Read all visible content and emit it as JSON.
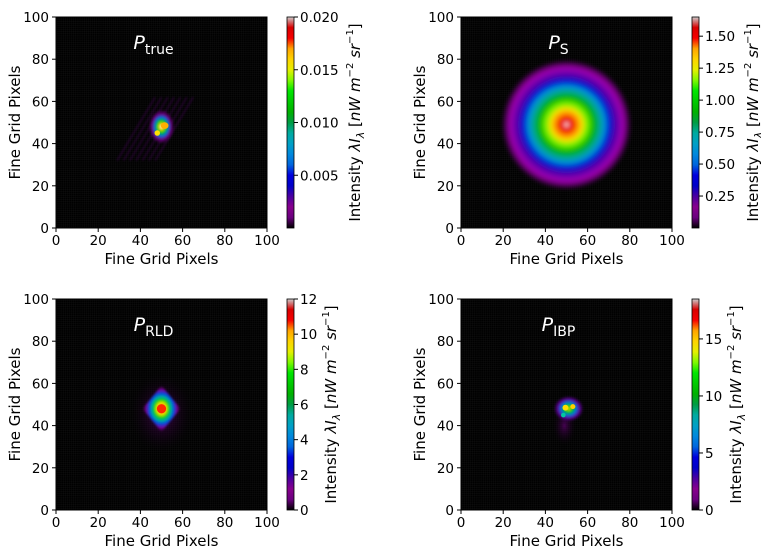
{
  "chart_data": [
    {
      "type": "heatmap",
      "title": "P_true",
      "title_main": "P",
      "title_sub": "true",
      "xlabel": "Fine Grid Pixels",
      "ylabel": "Fine Grid Pixels",
      "xlim": [
        0,
        100
      ],
      "ylim": [
        0,
        100
      ],
      "xticks": [
        "0",
        "20",
        "40",
        "60",
        "80",
        "100"
      ],
      "yticks": [
        "0",
        "20",
        "40",
        "60",
        "80",
        "100"
      ],
      "colorbar": {
        "label": "Intensity λI_λ [nW m^-2 sr^-1]",
        "range": [
          0,
          0.02
        ],
        "ticks": [
          "0.005",
          "0.010",
          "0.015",
          "0.020"
        ],
        "tick_values": [
          0.005,
          0.01,
          0.015,
          0.02
        ],
        "colormap": "nipy_spectral"
      },
      "source": {
        "center": [
          50,
          48
        ],
        "shape": "compact clumpy source with faint diagonal striations",
        "peak": 0.02
      }
    },
    {
      "type": "heatmap",
      "title": "P_S",
      "title_main": "P",
      "title_sub": "S",
      "xlabel": "Fine Grid Pixels",
      "ylabel": "Fine Grid Pixels",
      "xlim": [
        0,
        100
      ],
      "ylim": [
        0,
        100
      ],
      "xticks": [
        "0",
        "20",
        "40",
        "60",
        "80",
        "100"
      ],
      "yticks": [
        "0",
        "20",
        "40",
        "60",
        "80",
        "100"
      ],
      "colorbar": {
        "label": "Intensity λI_λ [nW m^-2 sr^-1]",
        "range": [
          0,
          1.65
        ],
        "ticks": [
          "0.25",
          "0.50",
          "0.75",
          "1.00",
          "1.25",
          "1.50"
        ],
        "tick_values": [
          0.25,
          0.5,
          0.75,
          1.0,
          1.25,
          1.5
        ],
        "colormap": "nipy_spectral"
      },
      "source": {
        "center": [
          50,
          49
        ],
        "shape": "broad smooth rounded-square blob",
        "peak": 1.65
      }
    },
    {
      "type": "heatmap",
      "title": "P_RLD",
      "title_main": "P",
      "title_sub": "RLD",
      "xlabel": "Fine Grid Pixels",
      "ylabel": "Fine Grid Pixels",
      "xlim": [
        0,
        100
      ],
      "ylim": [
        0,
        100
      ],
      "xticks": [
        "0",
        "20",
        "40",
        "60",
        "80",
        "100"
      ],
      "yticks": [
        "0",
        "20",
        "40",
        "60",
        "80",
        "100"
      ],
      "colorbar": {
        "label": "Intensity λI_λ [nW m^-2 sr^-1]",
        "range": [
          0,
          12
        ],
        "ticks": [
          "0",
          "2",
          "4",
          "6",
          "8",
          "10",
          "12"
        ],
        "tick_values": [
          0,
          2,
          4,
          6,
          8,
          10,
          12
        ],
        "colormap": "nipy_spectral"
      },
      "source": {
        "center": [
          50,
          48
        ],
        "shape": "compact diamond-shaped source with faint halo",
        "peak": 12
      }
    },
    {
      "type": "heatmap",
      "title": "P_IBP",
      "title_main": "P",
      "title_sub": "IBP",
      "xlabel": "Fine Grid Pixels",
      "ylabel": "Fine Grid Pixels",
      "xlim": [
        0,
        100
      ],
      "ylim": [
        0,
        100
      ],
      "xticks": [
        "0",
        "20",
        "40",
        "60",
        "80",
        "100"
      ],
      "yticks": [
        "0",
        "20",
        "40",
        "60",
        "80",
        "100"
      ],
      "colorbar": {
        "label": "Intensity λI_λ [nW m^-2 sr^-1]",
        "range": [
          0,
          18.5
        ],
        "ticks": [
          "0",
          "5",
          "10",
          "15"
        ],
        "tick_values": [
          0,
          5,
          10,
          15
        ],
        "colormap": "nipy_spectral"
      },
      "source": {
        "center": [
          51,
          48
        ],
        "shape": "compact clumpy source",
        "peak": 18.5
      }
    }
  ]
}
